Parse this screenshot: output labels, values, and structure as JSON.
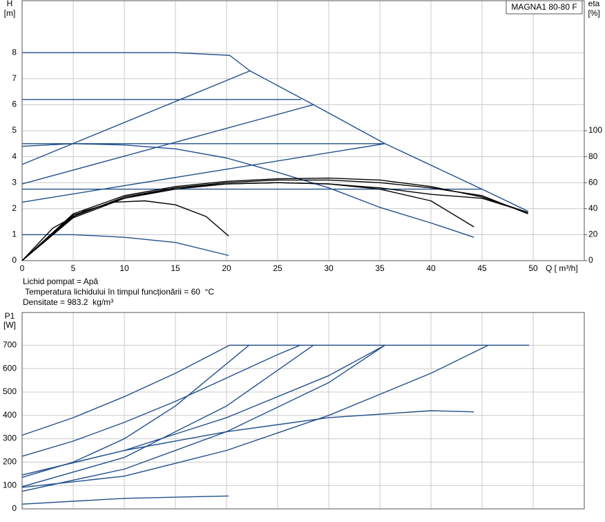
{
  "chart_data": [
    {
      "type": "line",
      "title": "MAGNA1 80-80 F",
      "ylabel": "H",
      "yunit": "[m]",
      "y2label": "eta",
      "y2unit": "[%]",
      "xlabel": "Q [ m³/h]",
      "annotations": [
        "Lichid pompat = Apă",
        " Temperatura lichidului în timpul funcționării = 60  °C",
        "Densitate = 983.2  kg/m³"
      ],
      "xlim": [
        0,
        55
      ],
      "xticks": [
        0,
        5,
        10,
        15,
        20,
        25,
        30,
        35,
        40,
        45,
        50
      ],
      "ylim": [
        0,
        10
      ],
      "yticks": [
        0,
        1,
        2,
        3,
        4,
        5,
        6,
        7,
        8
      ],
      "y2lim": [
        0,
        200
      ],
      "y2ticks": [
        0,
        20,
        40,
        60,
        80,
        100
      ],
      "grid": true,
      "series": [
        {
          "color": "#1f4e8c",
          "x": [
            0,
            5,
            10,
            15,
            20.3,
            22.3,
            28.5,
            35.5,
            45,
            49.5
          ],
          "values": [
            8,
            8,
            8,
            8,
            7.9,
            7.3,
            6,
            4.5,
            2.75,
            1.9
          ]
        },
        {
          "color": "#1f4e8c",
          "x": [
            0,
            22.3
          ],
          "values": [
            3.7,
            7.3
          ]
        },
        {
          "color": "#1f4e8c",
          "x": [
            0,
            28.5
          ],
          "values": [
            2.95,
            6
          ]
        },
        {
          "color": "#1f4e8c",
          "x": [
            0,
            35.5
          ],
          "values": [
            2.25,
            4.5
          ]
        },
        {
          "color": "#1f4e8c",
          "x": [
            0,
            27.3
          ],
          "values": [
            6.2,
            6.2
          ]
        },
        {
          "color": "#1f4e8c",
          "x": [
            0,
            35.5
          ],
          "values": [
            4.5,
            4.5
          ]
        },
        {
          "color": "#1f4e8c",
          "x": [
            0,
            45
          ],
          "values": [
            2.75,
            2.75
          ]
        },
        {
          "color": "#1f4e8c",
          "x": [
            0,
            5,
            10,
            15,
            20,
            25,
            30,
            35,
            40,
            44.2
          ],
          "values": [
            4.4,
            4.5,
            4.45,
            4.3,
            3.95,
            3.4,
            2.8,
            2.05,
            1.45,
            0.9
          ]
        },
        {
          "color": "#1f4e8c",
          "x": [
            0,
            5,
            10,
            15,
            20.2
          ],
          "values": [
            1,
            1,
            0.9,
            0.7,
            0.2
          ]
        },
        {
          "color": "#000000",
          "axis": "y2",
          "x": [
            0,
            3,
            6,
            9,
            12,
            15,
            18,
            20.2
          ],
          "values": [
            0,
            25,
            38,
            45,
            46,
            43,
            34,
            19
          ]
        },
        {
          "color": "#000000",
          "axis": "y2",
          "x": [
            0,
            5,
            10,
            15,
            20,
            25,
            30,
            35,
            40,
            44.2
          ],
          "values": [
            0,
            35,
            48,
            55,
            59,
            60,
            59,
            55,
            46,
            26
          ]
        },
        {
          "color": "#000000",
          "axis": "y2",
          "x": [
            0,
            5,
            10,
            15,
            20,
            25,
            30,
            35,
            40,
            45,
            49.5
          ],
          "values": [
            0,
            36,
            50,
            57,
            61,
            63,
            63.5,
            62,
            57,
            49,
            37
          ]
        },
        {
          "color": "#000000",
          "axis": "y2",
          "x": [
            0,
            5,
            10,
            15,
            20,
            25,
            30,
            35,
            40,
            45,
            49.5
          ],
          "values": [
            0,
            33,
            48,
            56,
            60,
            62,
            62,
            60,
            56,
            50,
            36
          ]
        },
        {
          "color": "#000000",
          "axis": "y2",
          "x": [
            0,
            5,
            10,
            15,
            20,
            25,
            30,
            35,
            40,
            45,
            49.5
          ],
          "values": [
            0,
            34,
            49,
            56,
            59,
            60,
            59,
            56,
            51,
            48,
            37
          ]
        }
      ]
    },
    {
      "type": "line",
      "ylabel": "P1",
      "yunit": "[W]",
      "xlim": [
        0,
        55
      ],
      "xticks": [
        0,
        5,
        10,
        15,
        20,
        25,
        30,
        35,
        40,
        45,
        50
      ],
      "ylim": [
        0,
        840
      ],
      "yticks": [
        0,
        100,
        200,
        300,
        400,
        500,
        600,
        700
      ],
      "grid": true,
      "series": [
        {
          "color": "#1f4e8c",
          "x": [
            0,
            5,
            10,
            15,
            20.3,
            49.6
          ],
          "values": [
            315,
            390,
            480,
            580,
            700,
            700
          ]
        },
        {
          "color": "#1f4e8c",
          "x": [
            0,
            5,
            10,
            15,
            20,
            25,
            27.2
          ],
          "values": [
            225,
            290,
            370,
            460,
            560,
            660,
            700
          ]
        },
        {
          "color": "#1f4e8c",
          "x": [
            0,
            10,
            20,
            30,
            35.5
          ],
          "values": [
            145,
            250,
            390,
            570,
            700
          ]
        },
        {
          "color": "#1f4e8c",
          "x": [
            0,
            5,
            10,
            15,
            22.2
          ],
          "values": [
            135,
            200,
            300,
            440,
            700
          ]
        },
        {
          "color": "#1f4e8c",
          "x": [
            0,
            10,
            20,
            28.5
          ],
          "values": [
            95,
            220,
            440,
            700
          ]
        },
        {
          "color": "#1f4e8c",
          "x": [
            0,
            10,
            20,
            30,
            40,
            45.6
          ],
          "values": [
            92,
            140,
            250,
            400,
            580,
            700
          ]
        },
        {
          "color": "#1f4e8c",
          "x": [
            0,
            10,
            20,
            30,
            35.5
          ],
          "values": [
            75,
            170,
            330,
            540,
            700
          ]
        },
        {
          "color": "#1f4e8c",
          "x": [
            0,
            10,
            20,
            30,
            40,
            44.2
          ],
          "values": [
            145,
            250,
            330,
            390,
            420,
            415
          ]
        },
        {
          "color": "#1f4e8c",
          "x": [
            0,
            10,
            20,
            20.2
          ],
          "values": [
            20,
            45,
            55,
            55
          ]
        }
      ]
    }
  ]
}
